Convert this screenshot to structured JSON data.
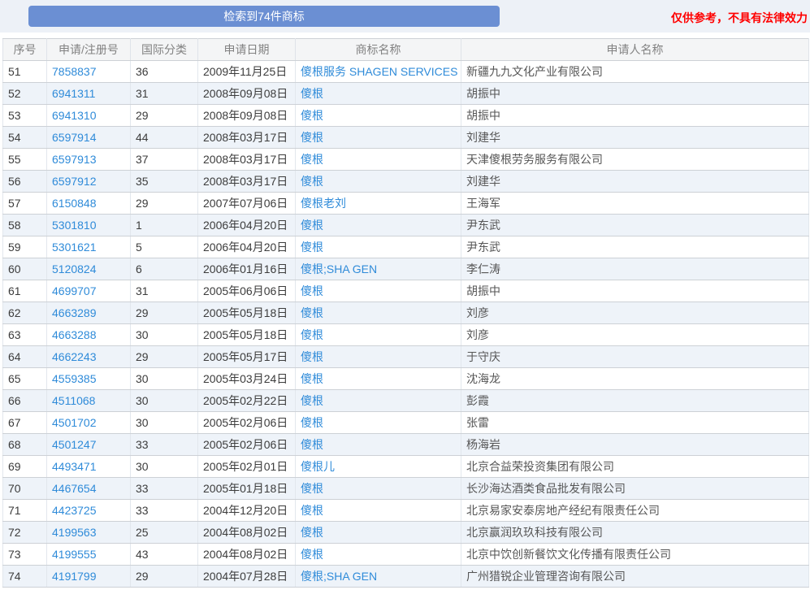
{
  "header": {
    "result_button": "检索到74件商标",
    "disclaimer": "仅供参考，不具有法律效力"
  },
  "colors": {
    "button_bg": "#6b8fd3",
    "topbar_bg": "#edf1f7",
    "disclaimer_red": "#ff0000",
    "link_blue": "#2f8bd9",
    "row_alt_bg": "#eef3f9"
  },
  "table": {
    "columns": [
      "序号",
      "申请/注册号",
      "国际分类",
      "申请日期",
      "商标名称",
      "申请人名称"
    ],
    "rows": [
      [
        "51",
        "7858837",
        "36",
        "2009年11月25日",
        "傻根服务 SHAGEN SERVICES",
        "新疆九九文化产业有限公司"
      ],
      [
        "52",
        "6941311",
        "31",
        "2008年09月08日",
        "傻根",
        "胡振中"
      ],
      [
        "53",
        "6941310",
        "29",
        "2008年09月08日",
        "傻根",
        "胡振中"
      ],
      [
        "54",
        "6597914",
        "44",
        "2008年03月17日",
        "傻根",
        "刘建华"
      ],
      [
        "55",
        "6597913",
        "37",
        "2008年03月17日",
        "傻根",
        "天津傻根劳务服务有限公司"
      ],
      [
        "56",
        "6597912",
        "35",
        "2008年03月17日",
        "傻根",
        "刘建华"
      ],
      [
        "57",
        "6150848",
        "29",
        "2007年07月06日",
        "傻根老刘",
        "王海军"
      ],
      [
        "58",
        "5301810",
        "1",
        "2006年04月20日",
        "傻根",
        "尹东武"
      ],
      [
        "59",
        "5301621",
        "5",
        "2006年04月20日",
        "傻根",
        "尹东武"
      ],
      [
        "60",
        "5120824",
        "6",
        "2006年01月16日",
        "傻根;SHA GEN",
        "李仁涛"
      ],
      [
        "61",
        "4699707",
        "31",
        "2005年06月06日",
        "傻根",
        "胡振中"
      ],
      [
        "62",
        "4663289",
        "29",
        "2005年05月18日",
        "傻根",
        "刘彦"
      ],
      [
        "63",
        "4663288",
        "30",
        "2005年05月18日",
        "傻根",
        "刘彦"
      ],
      [
        "64",
        "4662243",
        "29",
        "2005年05月17日",
        "傻根",
        "于守庆"
      ],
      [
        "65",
        "4559385",
        "30",
        "2005年03月24日",
        "傻根",
        "沈海龙"
      ],
      [
        "66",
        "4511068",
        "30",
        "2005年02月22日",
        "傻根",
        "彭霞"
      ],
      [
        "67",
        "4501702",
        "30",
        "2005年02月06日",
        "傻根",
        "张雷"
      ],
      [
        "68",
        "4501247",
        "33",
        "2005年02月06日",
        "傻根",
        "杨海岩"
      ],
      [
        "69",
        "4493471",
        "30",
        "2005年02月01日",
        "傻根儿",
        "北京合益荣投资集团有限公司"
      ],
      [
        "70",
        "4467654",
        "33",
        "2005年01月18日",
        "傻根",
        "长沙海达酒类食品批发有限公司"
      ],
      [
        "71",
        "4423725",
        "33",
        "2004年12月20日",
        "傻根",
        "北京易家安泰房地产经纪有限责任公司"
      ],
      [
        "72",
        "4199563",
        "25",
        "2004年08月02日",
        "傻根",
        "北京赢润玖玖科技有限公司"
      ],
      [
        "73",
        "4199555",
        "43",
        "2004年08月02日",
        "傻根",
        "北京中饮创新餐饮文化传播有限责任公司"
      ],
      [
        "74",
        "4191799",
        "29",
        "2004年07月28日",
        "傻根;SHA GEN",
        "广州猎锐企业管理咨询有限公司"
      ]
    ]
  }
}
